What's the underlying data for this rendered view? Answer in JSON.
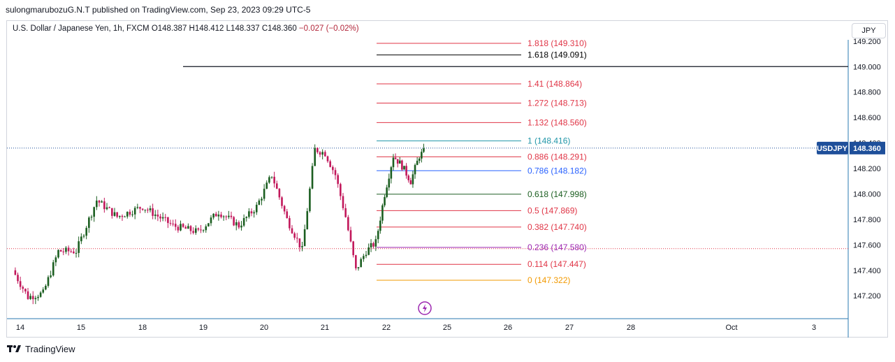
{
  "header": {
    "published": "sulongmarubozuG.N.T published on TradingView.com, Sep 23, 2023 09:29 UTC-5",
    "symbol_desc": "U.S. Dollar / Japanese Yen, 1h, FXCM",
    "o_label": "O",
    "o": "148.387",
    "h_label": "H",
    "h": "148.412",
    "l_label": "L",
    "l": "148.337",
    "c_label": "C",
    "c": "148.360",
    "change": "−0.027 (−0.02%)",
    "currency_button": "JPY"
  },
  "footer": {
    "brand": "TradingView"
  },
  "colors": {
    "up": "#1b5e20",
    "down": "#c2185b",
    "axis": "#2a7ab0",
    "badge": "#1e4f9a"
  },
  "chart_data": {
    "type": "candlestick",
    "symbol": "USDJPY",
    "last_price": "148.360",
    "ylim": [
      147.02,
      149.21
    ],
    "y_ticks": [
      "149.200",
      "149.000",
      "148.800",
      "148.600",
      "148.400",
      "148.200",
      "148.000",
      "147.800",
      "147.600",
      "147.400",
      "147.200"
    ],
    "x_ticks": [
      "14",
      "15",
      "18",
      "19",
      "20",
      "21",
      "22",
      "25",
      "26",
      "27",
      "28",
      "Oct",
      "3"
    ],
    "horizontal_line": 149.0,
    "fib_levels": [
      {
        "label": "1.818 (149.310)",
        "price": 149.31,
        "color": "#e03546"
      },
      {
        "label": "1.618 (149.091)",
        "price": 149.091,
        "color": "#000000"
      },
      {
        "label": "1.41 (148.864)",
        "price": 148.864,
        "color": "#e03546"
      },
      {
        "label": "1.272 (148.713)",
        "price": 148.713,
        "color": "#e03546"
      },
      {
        "label": "1.132 (148.560)",
        "price": 148.56,
        "color": "#e03546"
      },
      {
        "label": "1 (148.416)",
        "price": 148.416,
        "color": "#2196a8"
      },
      {
        "label": "0.886 (148.291)",
        "price": 148.291,
        "color": "#e03546"
      },
      {
        "label": "0.786 (148.182)",
        "price": 148.182,
        "color": "#2962ff"
      },
      {
        "label": "0.618 (147.998)",
        "price": 147.998,
        "color": "#1b5e20"
      },
      {
        "label": "0.5 (147.869)",
        "price": 147.869,
        "color": "#e03546"
      },
      {
        "label": "0.382 (147.740)",
        "price": 147.74,
        "color": "#e03546"
      },
      {
        "label": "0.236 (147.580)",
        "price": 147.58,
        "color": "#9c27b0"
      },
      {
        "label": "0.114 (147.447)",
        "price": 147.447,
        "color": "#e03546"
      },
      {
        "label": "0 (147.322)",
        "price": 147.322,
        "color": "#f29900"
      }
    ],
    "anchors": [
      {
        "date": "14",
        "price": 147.4
      },
      {
        "date": "14",
        "price": 147.19
      },
      {
        "date": "14",
        "price": 147.22
      },
      {
        "date": "14",
        "price": 147.55
      },
      {
        "date": "15",
        "price": 147.55
      },
      {
        "date": "15",
        "price": 147.95
      },
      {
        "date": "15",
        "price": 147.82
      },
      {
        "date": "18",
        "price": 147.9
      },
      {
        "date": "18",
        "price": 147.75
      },
      {
        "date": "19",
        "price": 147.7
      },
      {
        "date": "19",
        "price": 147.86
      },
      {
        "date": "19",
        "price": 147.75
      },
      {
        "date": "20",
        "price": 147.9
      },
      {
        "date": "20",
        "price": 148.15
      },
      {
        "date": "20",
        "price": 147.8
      },
      {
        "date": "20",
        "price": 147.56
      },
      {
        "date": "21",
        "price": 148.35
      },
      {
        "date": "21",
        "price": 148.32
      },
      {
        "date": "21",
        "price": 148.15
      },
      {
        "date": "21",
        "price": 147.82
      },
      {
        "date": "21",
        "price": 147.4
      },
      {
        "date": "21",
        "price": 147.55
      },
      {
        "date": "22",
        "price": 147.62
      },
      {
        "date": "22",
        "price": 148.0
      },
      {
        "date": "22",
        "price": 148.3
      },
      {
        "date": "22",
        "price": 148.22
      },
      {
        "date": "22",
        "price": 148.1
      },
      {
        "date": "22",
        "price": 148.3
      },
      {
        "date": "22",
        "price": 148.36
      }
    ]
  }
}
